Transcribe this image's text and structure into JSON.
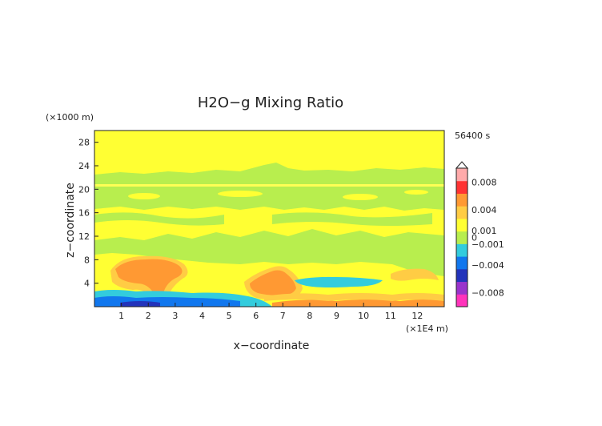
{
  "chart_data": {
    "type": "heatmap",
    "title": "H2O−g Mixing Ratio",
    "xlabel": "x−coordinate",
    "ylabel": "z−coordinate",
    "x_unit": "(×1E4 m)",
    "y_unit": "(×1000 m)",
    "time_label": "56400 s",
    "xlim": [
      0,
      13
    ],
    "ylim": [
      0,
      30
    ],
    "x_ticks": [
      1,
      2,
      3,
      4,
      5,
      6,
      7,
      8,
      9,
      10,
      11,
      12
    ],
    "y_ticks": [
      4,
      8,
      12,
      16,
      20,
      24,
      28
    ],
    "colorbar": {
      "range": [
        -0.01,
        0.01
      ],
      "tick_values": [
        0.008,
        0.004,
        0.001,
        0,
        -0.001,
        -0.004,
        -0.008
      ],
      "tick_labels": [
        "0.008",
        "0.004",
        "0.001",
        "0",
        "−0.001",
        "−0.004",
        "−0.008"
      ],
      "extend": "max"
    },
    "regions": [
      {
        "name": "upper-yellow-band",
        "value": 0.0005,
        "x": [
          0,
          13
        ],
        "z": [
          23,
          30
        ]
      },
      {
        "name": "green-band-upper",
        "value": -0.0005,
        "x": [
          0,
          13
        ],
        "z": [
          16,
          23
        ]
      },
      {
        "name": "green-band-middle",
        "value": -0.0005,
        "x": [
          0,
          13
        ],
        "z": [
          6,
          12
        ]
      },
      {
        "name": "orange-anomaly-left",
        "value": 0.003,
        "x": [
          1.2,
          3.2
        ],
        "z": [
          2,
          8
        ]
      },
      {
        "name": "orange-anomaly-center",
        "value": 0.003,
        "x": [
          5.8,
          7.3
        ],
        "z": [
          2,
          7
        ]
      },
      {
        "name": "cyan-moist-layer",
        "value": -0.003,
        "x": [
          7.5,
          10.5
        ],
        "z": [
          3.5,
          5
        ]
      },
      {
        "name": "blue-surface-layer",
        "value": -0.004,
        "x": [
          0,
          6.5
        ],
        "z": [
          0,
          2
        ]
      }
    ]
  },
  "colors": {
    "yellow": "#ffff33",
    "green": "#b8ee4e",
    "orange": "#ff9933",
    "light_orange": "#ffcc44",
    "cyan": "#33ccdd",
    "blue": "#1177ee",
    "dark_blue": "#2233bb",
    "colorbar": [
      "#ff33bb",
      "#9933cc",
      "#2233bb",
      "#1177ee",
      "#33ccdd",
      "#b8ee4e",
      "#ffff33",
      "#ffcc44",
      "#ff9933",
      "#ff3333",
      "#ffaaaa"
    ]
  }
}
